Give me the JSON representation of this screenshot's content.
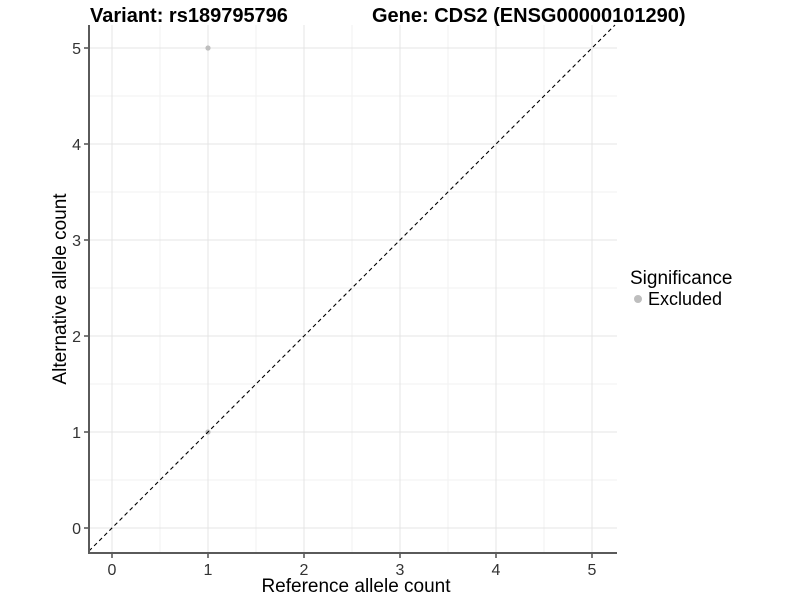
{
  "chart_data": {
    "type": "scatter",
    "title_left": "Variant: rs189795796",
    "title_right": "Gene: CDS2 (ENSG00000101290)",
    "xlabel": "Reference allele count",
    "ylabel": "Alternative allele count",
    "x_ticks": [
      0,
      1,
      2,
      3,
      4,
      5
    ],
    "y_ticks": [
      0,
      1,
      2,
      3,
      4,
      5
    ],
    "xlim": [
      -0.25,
      5.25
    ],
    "ylim": [
      -0.25,
      5.25
    ],
    "grid": {
      "major": true,
      "minor": true,
      "minor_step": 0.5
    },
    "reference_line": {
      "kind": "identity y=x",
      "style": "dashed",
      "color": "#000000"
    },
    "series": [
      {
        "name": "Excluded",
        "color": "#bebebe",
        "point_radius": 2.6,
        "points": [
          {
            "x": 1,
            "y": 5
          },
          {
            "x": 1,
            "y": 1
          }
        ]
      }
    ],
    "legend": {
      "title": "Significance",
      "position": "right",
      "entries": [
        {
          "label": "Excluded",
          "color": "#bebebe"
        }
      ]
    }
  },
  "style": {
    "background": "#ffffff",
    "grid_major": "#e4e4e4",
    "grid_minor": "#f2f2f2",
    "axis_line": "#5a5a5a",
    "tick_color": "#5a5a5a",
    "text_color": "#333333"
  }
}
